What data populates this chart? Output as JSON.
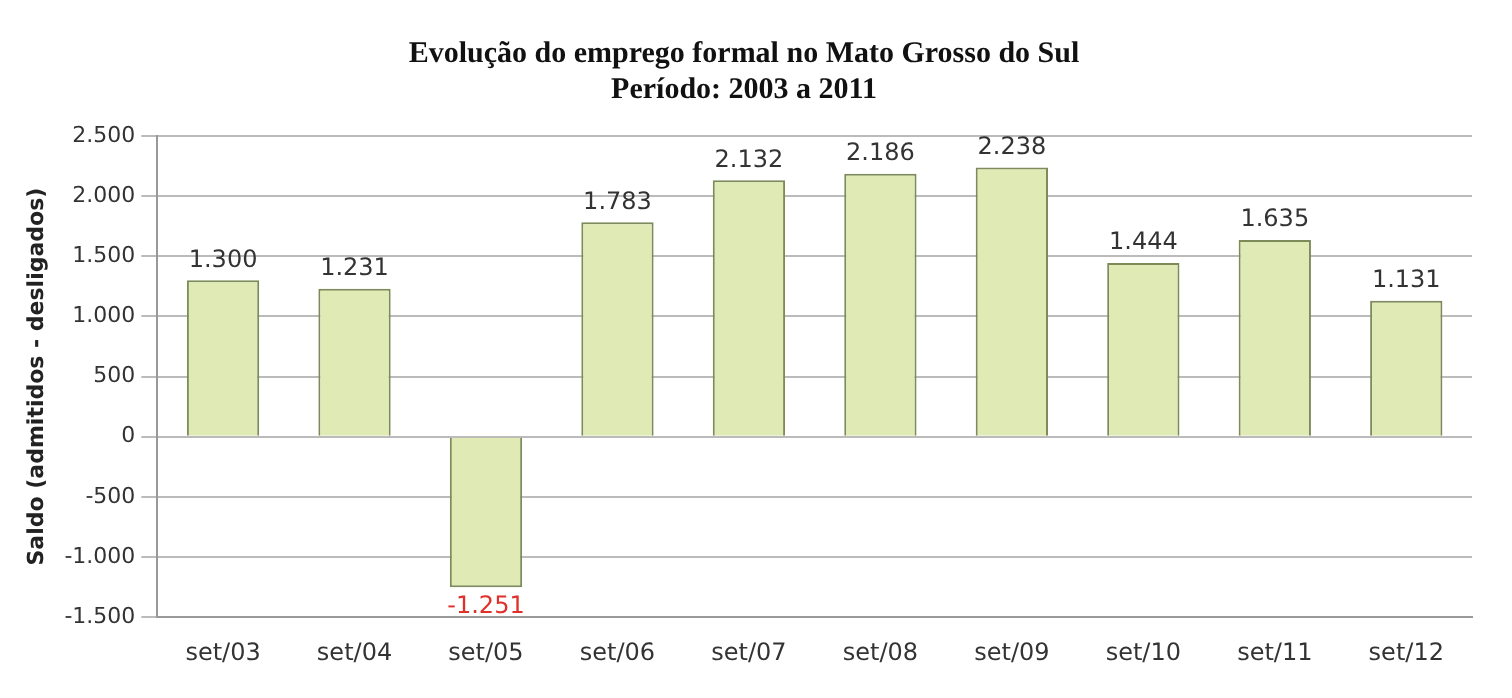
{
  "chart_data": {
    "type": "bar",
    "title": "Evolução do emprego formal no Mato Grosso do Sul",
    "subtitle": "Período: 2003 a 2011",
    "ylabel": "Saldo (admitidos - desligados)",
    "categories": [
      "set/03",
      "set/04",
      "set/05",
      "set/06",
      "set/07",
      "set/08",
      "set/09",
      "set/10",
      "set/11",
      "set/12"
    ],
    "values": [
      1300,
      1231,
      -1251,
      1783,
      2132,
      2186,
      2238,
      1444,
      1635,
      1131
    ],
    "value_labels": [
      "1.300",
      "1.231",
      "-1.251",
      "1.783",
      "2.132",
      "2.186",
      "2.238",
      "1.444",
      "1.635",
      "1.131"
    ],
    "color": "#dfeab5",
    "ylim": [
      -1500,
      2500
    ],
    "yticks": [
      {
        "value": -1500,
        "label": "-1.500"
      },
      {
        "value": -1000,
        "label": "-1.000"
      },
      {
        "value": -500,
        "label": "-500"
      },
      0,
      500,
      {
        "value": 1000,
        "label": "1.000"
      },
      {
        "value": 1500,
        "label": "1.500"
      },
      {
        "value": 2000,
        "label": "2.000"
      },
      {
        "value": 2500,
        "label": "2.500"
      }
    ],
    "grid": "y",
    "legend": false
  }
}
